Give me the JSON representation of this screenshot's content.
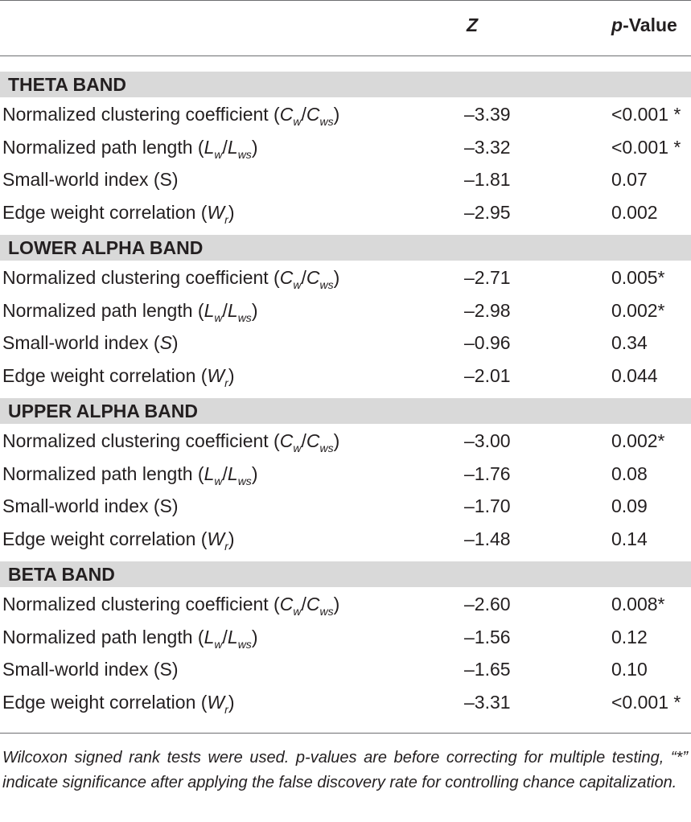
{
  "columns": {
    "z": "Z",
    "p_italic": "p",
    "p_rest": "-Value"
  },
  "bands": [
    {
      "title": "THETA BAND",
      "rows": [
        {
          "pre": "Normalized clustering coefficient (",
          "m1": "C",
          "s1": "w",
          "mid": "/",
          "m2": "C",
          "s2": "ws",
          "post": ")",
          "z": "–3.39",
          "p": "<0.001 *"
        },
        {
          "pre": "Normalized path length (",
          "m1": "L",
          "s1": "w",
          "mid": "/",
          "m2": "L",
          "s2": "ws",
          "post": ")",
          "z": "–3.32",
          "p": "<0.001 *"
        },
        {
          "pre": "Small-world index (S)",
          "z": "–1.81",
          "p": "0.07"
        },
        {
          "pre": "Edge weight correlation (",
          "m1": "W",
          "s1": "r",
          "post": ")",
          "z": "–2.95",
          "p": "0.002"
        }
      ]
    },
    {
      "title": "LOWER ALPHA BAND",
      "rows": [
        {
          "pre": "Normalized clustering coefficient (",
          "m1": "C",
          "s1": "w",
          "mid": "/",
          "m2": "C",
          "s2": "ws",
          "post": ")",
          "z": "–2.71",
          "p": "0.005*"
        },
        {
          "pre": "Normalized path length (",
          "m1": "L",
          "s1": "w",
          "mid": "/",
          "m2": "L",
          "s2": "ws",
          "post": ")",
          "z": "–2.98",
          "p": "0.002*"
        },
        {
          "pre": "Small-world index (",
          "m1": "S",
          "post": ")",
          "z": "–0.96",
          "p": "0.34"
        },
        {
          "pre": "Edge weight correlation (",
          "m1": "W",
          "s1": "r",
          "post": ")",
          "z": "–2.01",
          "p": "0.044"
        }
      ]
    },
    {
      "title": "UPPER ALPHA BAND",
      "rows": [
        {
          "pre": "Normalized clustering coefficient (",
          "m1": "C",
          "s1": "w",
          "mid": "/",
          "m2": "C",
          "s2": "ws",
          "post": ")",
          "z": "–3.00",
          "p": "0.002*"
        },
        {
          "pre": "Normalized path length (",
          "m1": "L",
          "s1": "w",
          "mid": "/",
          "m2": "L",
          "s2": "ws",
          "post": ")",
          "z": "–1.76",
          "p": "0.08"
        },
        {
          "pre": "Small-world index (S)",
          "z": "–1.70",
          "p": "0.09"
        },
        {
          "pre": "Edge weight correlation (",
          "m1": "W",
          "s1": "r",
          "post": ")",
          "z": "–1.48",
          "p": "0.14"
        }
      ]
    },
    {
      "title": "BETA BAND",
      "rows": [
        {
          "pre": "Normalized clustering coefficient (",
          "m1": "C",
          "s1": "w",
          "mid": "/",
          "m2": "C",
          "s2": "ws",
          "post": ")",
          "z": "–2.60",
          "p": "0.008*"
        },
        {
          "pre": "Normalized path length (",
          "m1": "L",
          "s1": "w",
          "mid": "/",
          "m2": "L",
          "s2": "ws",
          "post": ")",
          "z": "–1.56",
          "p": "0.12"
        },
        {
          "pre": "Small-world index (S)",
          "z": "–1.65",
          "p": "0.10"
        },
        {
          "pre": "Edge weight correlation (",
          "m1": "W",
          "s1": "r",
          "post": ")",
          "z": "–3.31",
          "p": "<0.001 *"
        }
      ]
    }
  ],
  "footnote": "Wilcoxon signed rank tests were used. p-values are before correcting for multiple testing, “*” indicate significance after applying the false discovery rate for controlling chance capitalization."
}
